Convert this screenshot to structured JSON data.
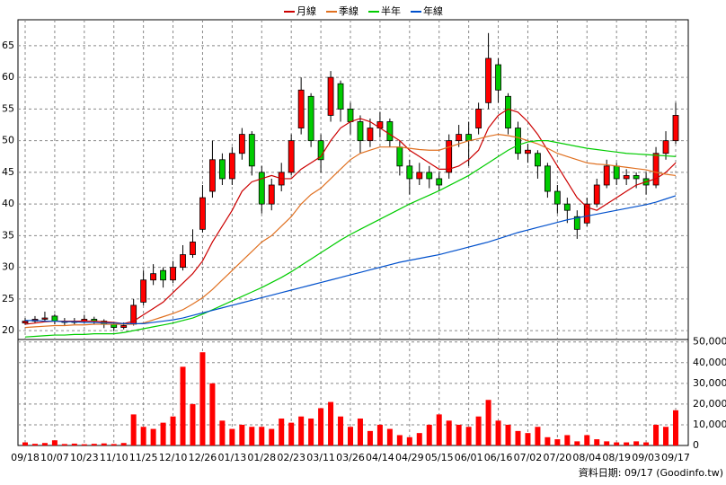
{
  "chart_data": {
    "type": "candlestick",
    "categories": [
      "09/18",
      null,
      null,
      "10/07",
      null,
      null,
      "10/23",
      null,
      null,
      "11/10",
      null,
      null,
      "11/25",
      null,
      null,
      "12/10",
      null,
      null,
      "12/26",
      null,
      null,
      "01/13",
      null,
      null,
      "01/28",
      null,
      null,
      "02/23",
      null,
      null,
      "03/11",
      null,
      null,
      "03/26",
      null,
      null,
      "04/14",
      null,
      null,
      "04/29",
      null,
      null,
      "05/15",
      null,
      null,
      "06/01",
      null,
      null,
      "06/16",
      null,
      null,
      "07/02",
      null,
      null,
      "07/20",
      null,
      null,
      "08/04",
      null,
      null,
      "08/19",
      null,
      null,
      "09/03",
      null,
      null,
      "09/17"
    ],
    "open": [
      21.2,
      21.5,
      21.8,
      22.3,
      21.5,
      21.3,
      21.5,
      21.8,
      21.5,
      21,
      20.5,
      21,
      24.5,
      28,
      29.5,
      28,
      30,
      32,
      36,
      42,
      47,
      44,
      48,
      51,
      45,
      40,
      43,
      45,
      52,
      57,
      50,
      54,
      59,
      55,
      53,
      50,
      52,
      53,
      49,
      46,
      44,
      45,
      44,
      45,
      50,
      51,
      52,
      56,
      62,
      57,
      52,
      48,
      48,
      46,
      42,
      40,
      38,
      37,
      40,
      43,
      46,
      44,
      44.5,
      44,
      43,
      48,
      50
    ],
    "high": [
      22,
      22.3,
      23,
      22.6,
      22,
      22,
      22.5,
      22.2,
      21.8,
      21.2,
      21.3,
      25,
      29.5,
      30.5,
      30,
      31,
      33.5,
      36,
      43,
      50,
      48,
      49,
      52,
      51.5,
      46,
      44,
      46.5,
      51,
      60,
      57.5,
      51,
      61,
      59.5,
      56,
      54,
      53.5,
      54.5,
      53.5,
      50,
      47,
      46.5,
      46,
      45,
      51,
      52.5,
      53,
      56,
      67,
      63,
      57.5,
      53,
      49.5,
      48.5,
      46.5,
      43,
      41,
      39,
      41,
      44,
      47,
      46.5,
      45.5,
      45,
      45,
      49,
      51.5,
      56
    ],
    "low": [
      20.9,
      21.2,
      21.4,
      21,
      20.8,
      21,
      21.2,
      21,
      20.4,
      19.9,
      20.2,
      20.8,
      24,
      27.2,
      26.8,
      27.5,
      29.5,
      31.5,
      35.5,
      41,
      43,
      43,
      47,
      44.5,
      38.5,
      39,
      42,
      44.5,
      51,
      49,
      45,
      53,
      53,
      51,
      48,
      49,
      50.5,
      49,
      44.5,
      41.5,
      43,
      42.5,
      42,
      44,
      49,
      46,
      51,
      55,
      56,
      51,
      47,
      46.5,
      44,
      41,
      38.5,
      37,
      34.5,
      36.5,
      39.5,
      42.5,
      43,
      43,
      42.5,
      41.5,
      42.5,
      47,
      49.5
    ],
    "close": [
      21.5,
      21.8,
      22,
      21.5,
      21.3,
      21.5,
      21.8,
      21.5,
      21,
      20.5,
      20.8,
      24,
      28,
      29,
      28,
      30,
      32,
      34,
      41,
      47,
      44,
      48,
      51,
      46,
      40,
      43,
      45,
      50,
      58,
      50,
      47,
      60,
      55,
      53,
      50,
      52,
      53,
      50,
      46,
      44,
      45,
      44,
      43,
      50,
      51,
      50,
      55,
      63,
      58,
      52,
      48,
      48.5,
      46,
      42,
      40,
      39,
      36,
      40,
      43,
      46,
      44,
      44.5,
      44,
      43,
      48,
      50,
      54
    ],
    "volume": [
      1500,
      800,
      1200,
      2500,
      700,
      900,
      600,
      800,
      1000,
      700,
      1200,
      15000,
      9000,
      8000,
      11000,
      14000,
      38000,
      20000,
      45000,
      30000,
      12000,
      8000,
      10000,
      9000,
      9000,
      8000,
      13000,
      11000,
      14000,
      13000,
      18000,
      21000,
      14000,
      9000,
      13000,
      7000,
      10000,
      8000,
      5000,
      4000,
      6000,
      10000,
      15000,
      12000,
      10000,
      9000,
      14000,
      22000,
      12000,
      10000,
      7000,
      6000,
      9000,
      4000,
      3000,
      5000,
      2000,
      5000,
      3000,
      2000,
      1500,
      1500,
      2000,
      1500,
      10000,
      9000,
      17000
    ],
    "up_color": "#ff0000",
    "down_color": "#00cc00",
    "volume_color": "#ff0000",
    "series": [
      {
        "name": "月線",
        "color": "#cc0000",
        "values": [
          21,
          21.2,
          21.4,
          21.5,
          21.5,
          21.5,
          21.5,
          21.5,
          21.4,
          21.3,
          21.1,
          21.5,
          22.5,
          23.5,
          24.5,
          26,
          27.5,
          29,
          31,
          34,
          36.5,
          39,
          42,
          43.5,
          44,
          44.5,
          44,
          44,
          45.5,
          46.5,
          47.5,
          50,
          52,
          53,
          53.5,
          53,
          52,
          51,
          50,
          48.5,
          47.5,
          46.5,
          45.5,
          45.5,
          46,
          47,
          48.5,
          52,
          54,
          55,
          54.5,
          53,
          51,
          48.5,
          46,
          43.5,
          41,
          39.5,
          39,
          40,
          41,
          42,
          43,
          43.5,
          44,
          45,
          46.5
        ]
      },
      {
        "name": "季線",
        "color": "#e07020",
        "values": [
          20.5,
          20.6,
          20.7,
          20.8,
          20.8,
          20.9,
          20.9,
          21,
          21,
          21,
          21,
          21,
          21.2,
          21.7,
          22.2,
          22.7,
          23.3,
          24.2,
          25.2,
          26.5,
          28,
          29.5,
          31,
          32.5,
          34,
          35,
          36.5,
          38,
          40,
          41.5,
          42.5,
          44,
          45.5,
          47,
          48,
          48.5,
          49,
          49,
          49,
          48.8,
          48.6,
          48.5,
          48.5,
          49,
          49.5,
          50,
          50.3,
          50.7,
          51,
          50.8,
          50.5,
          50,
          49.5,
          48.8,
          48,
          47.5,
          47,
          46.5,
          46.3,
          46.2,
          46,
          45.8,
          45.6,
          45.4,
          45,
          44.7,
          44.5
        ]
      },
      {
        "name": "半年",
        "color": "#00cc00",
        "values": [
          19,
          19.1,
          19.2,
          19.3,
          19.3,
          19.4,
          19.4,
          19.5,
          19.5,
          19.5,
          19.7,
          20,
          20.3,
          20.6,
          20.9,
          21.2,
          21.6,
          22,
          22.6,
          23.3,
          24,
          24.7,
          25.4,
          26.1,
          26.8,
          27.6,
          28.4,
          29.3,
          30.3,
          31.3,
          32.3,
          33.3,
          34.3,
          35.2,
          36,
          36.8,
          37.6,
          38.4,
          39.2,
          40,
          40.7,
          41.4,
          42.1,
          42.9,
          43.7,
          44.5,
          45.5,
          46.5,
          47.5,
          48.5,
          49.3,
          49.8,
          50,
          50,
          49.7,
          49.4,
          49.1,
          48.8,
          48.6,
          48.4,
          48.2,
          48,
          47.9,
          47.8,
          47.7,
          47.6,
          47.5
        ]
      },
      {
        "name": "年線",
        "color": "#0050cc",
        "values": [
          21.6,
          21.6,
          21.5,
          21.5,
          21.4,
          21.4,
          21.3,
          21.3,
          21.2,
          21.2,
          21.1,
          21.1,
          21.1,
          21.3,
          21.5,
          21.7,
          22,
          22.4,
          22.8,
          23.2,
          23.6,
          24,
          24.4,
          24.8,
          25.2,
          25.6,
          26,
          26.4,
          26.8,
          27.2,
          27.6,
          28,
          28.4,
          28.8,
          29.2,
          29.6,
          30,
          30.4,
          30.8,
          31.1,
          31.4,
          31.7,
          32,
          32.4,
          32.8,
          33.2,
          33.6,
          34,
          34.5,
          35,
          35.5,
          35.9,
          36.3,
          36.7,
          37.1,
          37.5,
          37.8,
          38.1,
          38.4,
          38.7,
          39,
          39.3,
          39.6,
          39.9,
          40.3,
          40.8,
          41.3
        ]
      }
    ],
    "ylim": [
      18.6,
      69.1
    ],
    "yticks": [
      20,
      25,
      30,
      35,
      40,
      45,
      50,
      55,
      60,
      65
    ],
    "y2lim": [
      0,
      50300
    ],
    "y2ticks": [
      0,
      {
        "value": 10000,
        "label": "10,000"
      },
      {
        "value": 20000,
        "label": "20,000"
      },
      {
        "value": 30000,
        "label": "30,000"
      },
      {
        "value": 40000,
        "label": "40,000"
      },
      {
        "value": 50000,
        "label": "50,000"
      }
    ],
    "grid": true,
    "source_note": "資料日期: 09/17 (Goodinfo.tw)"
  }
}
